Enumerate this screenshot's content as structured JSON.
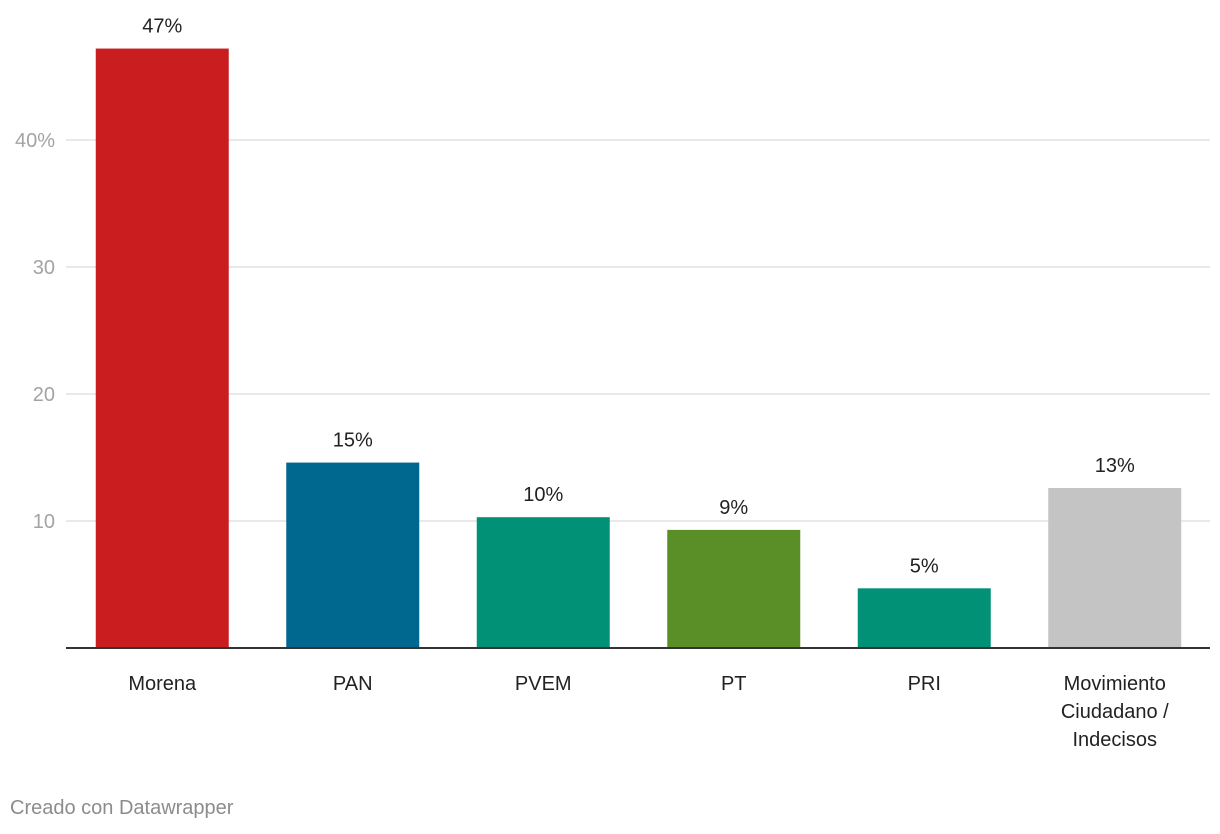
{
  "colors": {
    "morena": "#c91d1f",
    "pan": "#00678f",
    "pvem": "#009177",
    "pt": "#5a8e27",
    "pri": "#009177",
    "other": "#c4c4c4",
    "gridline": "#e2e2e2",
    "axis": "#333333",
    "tick_text": "#a3a3a3",
    "label_text": "#222222"
  },
  "chart_data": {
    "type": "bar",
    "title": "",
    "xlabel": "",
    "ylabel": "",
    "ylim": [
      0,
      50
    ],
    "y_ticks": [
      {
        "value": 10,
        "label": "10"
      },
      {
        "value": 20,
        "label": "20"
      },
      {
        "value": 30,
        "label": "30"
      },
      {
        "value": 40,
        "label": "40%"
      }
    ],
    "grid": true,
    "bars": [
      {
        "category_lines": [
          "Morena"
        ],
        "value": 47.2,
        "label": "47%",
        "color_key": "morena"
      },
      {
        "category_lines": [
          "PAN"
        ],
        "value": 14.6,
        "label": "15%",
        "color_key": "pan"
      },
      {
        "category_lines": [
          "PVEM"
        ],
        "value": 10.3,
        "label": "10%",
        "color_key": "pvem"
      },
      {
        "category_lines": [
          "PT"
        ],
        "value": 9.3,
        "label": "9%",
        "color_key": "pt"
      },
      {
        "category_lines": [
          "PRI"
        ],
        "value": 4.7,
        "label": "5%",
        "color_key": "pri"
      },
      {
        "category_lines": [
          "Movimiento",
          "Ciudadano /",
          "Indecisos"
        ],
        "value": 12.6,
        "label": "13%",
        "color_key": "other"
      }
    ]
  },
  "footer": {
    "credit": "Creado con Datawrapper"
  }
}
